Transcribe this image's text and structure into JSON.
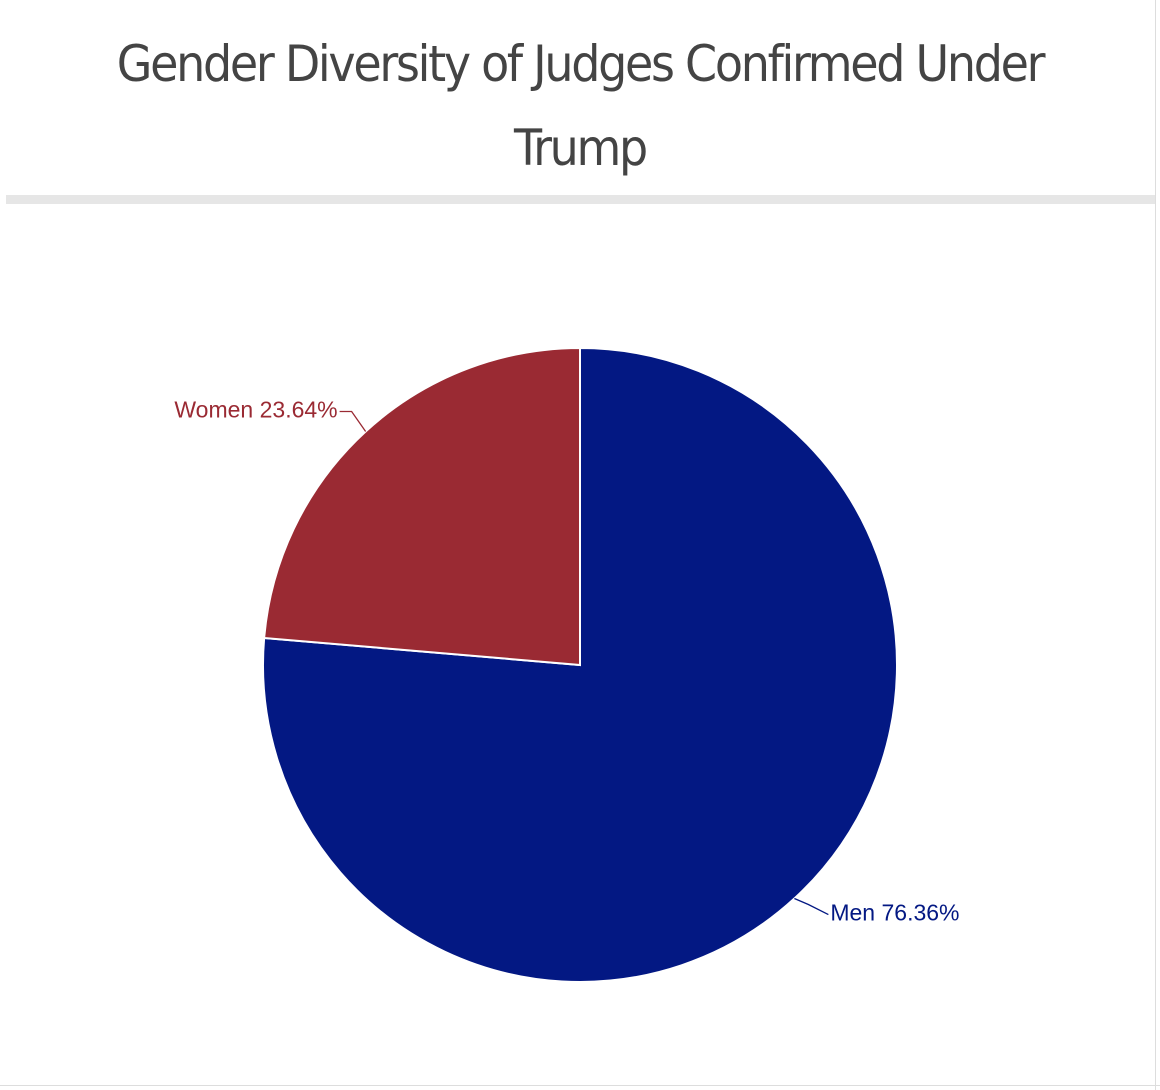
{
  "chart_data": {
    "type": "pie",
    "title": "Gender Diversity of Judges Confirmed Under Trump",
    "categories": [
      "Men",
      "Women"
    ],
    "values": [
      76.36,
      23.64
    ],
    "value_labels": [
      "76.36%",
      "23.64%"
    ],
    "colors": [
      "#031883",
      "#9a2a33"
    ]
  }
}
